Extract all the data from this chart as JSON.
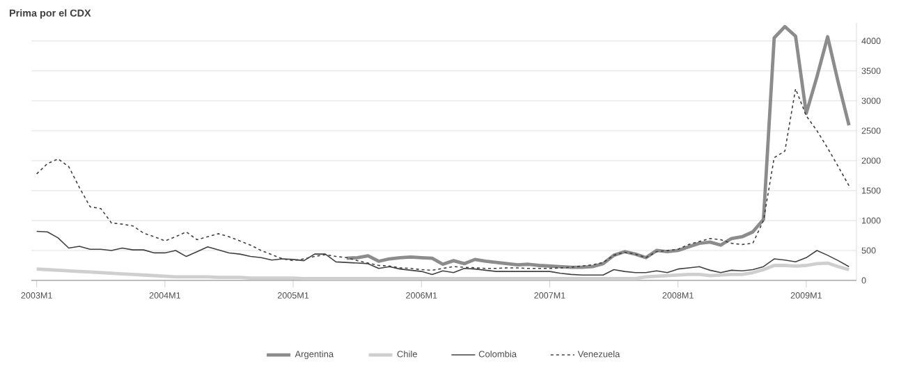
{
  "chart_data": {
    "type": "line",
    "title": "Prima por el CDX",
    "categories": [
      "2003M1",
      null,
      null,
      null,
      null,
      null,
      null,
      null,
      null,
      null,
      null,
      null,
      "2004M1",
      null,
      null,
      null,
      null,
      null,
      null,
      null,
      null,
      null,
      null,
      null,
      "2005M1",
      null,
      null,
      null,
      null,
      null,
      null,
      null,
      null,
      null,
      null,
      null,
      "2006M1",
      null,
      null,
      null,
      null,
      null,
      null,
      null,
      null,
      null,
      null,
      null,
      "2007M1",
      null,
      null,
      null,
      null,
      null,
      null,
      null,
      null,
      null,
      null,
      null,
      "2008M1",
      null,
      null,
      null,
      null,
      null,
      null,
      null,
      null,
      null,
      null,
      null,
      "2009M1",
      null,
      null,
      null,
      null
    ],
    "series": [
      {
        "name": "Argentina",
        "color": "#8c8c8c",
        "line_style": "solid",
        "values": [
          null,
          null,
          null,
          null,
          null,
          null,
          null,
          null,
          null,
          null,
          null,
          null,
          null,
          null,
          null,
          null,
          null,
          null,
          null,
          null,
          null,
          null,
          null,
          null,
          null,
          null,
          null,
          null,
          null,
          370,
          380,
          410,
          320,
          360,
          380,
          390,
          380,
          370,
          270,
          330,
          280,
          350,
          320,
          300,
          280,
          260,
          270,
          250,
          240,
          230,
          220,
          220,
          230,
          280,
          420,
          480,
          440,
          380,
          500,
          480,
          500,
          560,
          620,
          640,
          590,
          700,
          730,
          810,
          1020,
          4050,
          4240,
          4080,
          2790,
          3400,
          4070,
          3300,
          2590
        ]
      },
      {
        "name": "Chile",
        "color": "#cfcfcf",
        "line_style": "solid",
        "values": [
          190,
          180,
          170,
          160,
          150,
          140,
          130,
          120,
          110,
          100,
          90,
          80,
          70,
          60,
          60,
          60,
          60,
          50,
          50,
          50,
          40,
          40,
          40,
          40,
          40,
          30,
          30,
          30,
          30,
          30,
          30,
          30,
          30,
          30,
          30,
          30,
          30,
          30,
          30,
          30,
          30,
          30,
          30,
          30,
          30,
          30,
          30,
          30,
          30,
          30,
          30,
          30,
          30,
          30,
          30,
          30,
          30,
          60,
          70,
          80,
          90,
          100,
          100,
          80,
          90,
          100,
          100,
          130,
          180,
          250,
          250,
          240,
          250,
          280,
          290,
          230,
          180
        ]
      },
      {
        "name": "Colombia",
        "color": "#404040",
        "line_style": "solid",
        "values": [
          820,
          810,
          710,
          540,
          570,
          520,
          520,
          500,
          540,
          510,
          510,
          460,
          460,
          500,
          400,
          480,
          560,
          510,
          460,
          440,
          400,
          380,
          340,
          360,
          350,
          330,
          440,
          440,
          310,
          300,
          290,
          280,
          200,
          230,
          190,
          170,
          150,
          100,
          160,
          130,
          200,
          190,
          170,
          150,
          150,
          150,
          150,
          150,
          150,
          120,
          100,
          90,
          90,
          90,
          180,
          150,
          130,
          130,
          160,
          130,
          190,
          210,
          230,
          170,
          130,
          170,
          160,
          180,
          230,
          360,
          340,
          310,
          380,
          500,
          420,
          330,
          230
        ]
      },
      {
        "name": "Venezuela",
        "color": "#404040",
        "line_style": "dashed",
        "values": [
          1780,
          1950,
          2030,
          1900,
          1550,
          1230,
          1200,
          960,
          940,
          910,
          790,
          730,
          660,
          730,
          810,
          680,
          730,
          780,
          730,
          660,
          590,
          500,
          430,
          360,
          330,
          360,
          400,
          430,
          400,
          380,
          330,
          290,
          250,
          240,
          210,
          200,
          180,
          170,
          200,
          230,
          220,
          210,
          200,
          200,
          210,
          210,
          200,
          200,
          200,
          210,
          220,
          240,
          260,
          300,
          420,
          470,
          440,
          380,
          480,
          500,
          520,
          600,
          650,
          700,
          680,
          620,
          600,
          620,
          1000,
          2050,
          2160,
          3200,
          2750,
          2500,
          2210,
          1900,
          1580
        ]
      }
    ],
    "ylim": [
      0,
      4300
    ],
    "yticks": [
      0,
      500,
      1000,
      1500,
      2000,
      2500,
      3000,
      3500,
      4000
    ],
    "grid": "y",
    "legend": "bottom",
    "marker": "none"
  }
}
